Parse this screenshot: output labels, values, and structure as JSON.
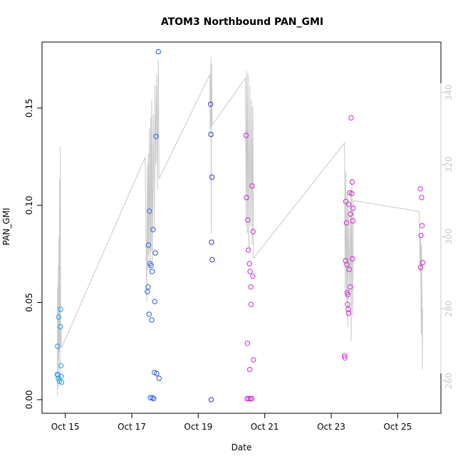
{
  "chart_data": {
    "type": "scatter",
    "title": "ATOM3 Northbound PAN_GMI",
    "xlabel": "Date",
    "ylabel": "PAN_GMI",
    "x_tick_labels": [
      "Oct 15",
      "Oct 17",
      "Oct 19",
      "Oct 21",
      "Oct 23",
      "Oct 25"
    ],
    "x_tick_values": [
      15,
      17,
      19,
      21,
      23,
      25
    ],
    "xlim": [
      14.3,
      26.3
    ],
    "ylim": [
      -0.007,
      0.184
    ],
    "y_ticks": [
      0.0,
      0.05,
      0.1,
      0.15
    ],
    "y_tick_labels": [
      "0.00",
      "0.05",
      "0.10",
      "0.15"
    ],
    "y2_ticks": [
      260,
      280,
      300,
      320,
      340
    ],
    "y2_tick_labels": [
      "260",
      "280",
      "300",
      "320",
      "340"
    ],
    "y2lim": [
      251,
      354
    ],
    "colors": {
      "series_blue": "#1e88e5",
      "series_gradient_start": "#1ea0e6",
      "series_gradient_mid": "#2f2fe0",
      "series_gradient_end": "#d02ad2",
      "secondary_line": "#c8c8c8"
    },
    "points": [
      {
        "x": 14.77,
        "y": 0.0275
      },
      {
        "x": 14.78,
        "y": 0.0125
      },
      {
        "x": 14.79,
        "y": 0.011
      },
      {
        "x": 14.8,
        "y": 0.0425
      },
      {
        "x": 14.82,
        "y": 0.0095
      },
      {
        "x": 14.85,
        "y": 0.0375
      },
      {
        "x": 14.86,
        "y": 0.0465
      },
      {
        "x": 14.87,
        "y": 0.0175
      },
      {
        "x": 14.88,
        "y": 0.012
      },
      {
        "x": 14.89,
        "y": 0.009
      },
      {
        "x": 14.76,
        "y": 0.013
      },
      {
        "x": 17.47,
        "y": 0.0555
      },
      {
        "x": 17.49,
        "y": 0.058
      },
      {
        "x": 17.5,
        "y": 0.0795
      },
      {
        "x": 17.52,
        "y": 0.044
      },
      {
        "x": 17.53,
        "y": 0.097
      },
      {
        "x": 17.55,
        "y": 0.07
      },
      {
        "x": 17.56,
        "y": 0.001
      },
      {
        "x": 17.58,
        "y": 0.069
      },
      {
        "x": 17.6,
        "y": 0.041
      },
      {
        "x": 17.61,
        "y": 0.066
      },
      {
        "x": 17.62,
        "y": 0.001
      },
      {
        "x": 17.64,
        "y": 0.0875
      },
      {
        "x": 17.66,
        "y": 0.0005
      },
      {
        "x": 17.68,
        "y": 0.014
      },
      {
        "x": 17.69,
        "y": 0.0505
      },
      {
        "x": 17.71,
        "y": 0.0755
      },
      {
        "x": 17.73,
        "y": 0.1355
      },
      {
        "x": 17.75,
        "y": 0.0135
      },
      {
        "x": 17.8,
        "y": 0.179
      },
      {
        "x": 17.82,
        "y": 0.011
      },
      {
        "x": 19.37,
        "y": 0.152
      },
      {
        "x": 19.38,
        "y": 0.1365
      },
      {
        "x": 19.39,
        "y": 0.0
      },
      {
        "x": 19.4,
        "y": 0.081
      },
      {
        "x": 19.41,
        "y": 0.1145
      },
      {
        "x": 19.42,
        "y": 0.072
      },
      {
        "x": 20.44,
        "y": 0.136
      },
      {
        "x": 20.45,
        "y": 0.104
      },
      {
        "x": 20.47,
        "y": 0.0005
      },
      {
        "x": 20.48,
        "y": 0.029
      },
      {
        "x": 20.49,
        "y": 0.0925
      },
      {
        "x": 20.51,
        "y": 0.077
      },
      {
        "x": 20.52,
        "y": 0.0005
      },
      {
        "x": 20.54,
        "y": 0.07
      },
      {
        "x": 20.55,
        "y": 0.0155
      },
      {
        "x": 20.56,
        "y": 0.066
      },
      {
        "x": 20.57,
        "y": 0.0005
      },
      {
        "x": 20.58,
        "y": 0.058
      },
      {
        "x": 20.59,
        "y": 0.049
      },
      {
        "x": 20.61,
        "y": 0.0005
      },
      {
        "x": 20.62,
        "y": 0.11
      },
      {
        "x": 20.64,
        "y": 0.0635
      },
      {
        "x": 20.65,
        "y": 0.0865
      },
      {
        "x": 20.66,
        "y": 0.0205
      },
      {
        "x": 23.4,
        "y": 0.0225
      },
      {
        "x": 23.41,
        "y": 0.0215
      },
      {
        "x": 23.43,
        "y": 0.0715
      },
      {
        "x": 23.44,
        "y": 0.102
      },
      {
        "x": 23.46,
        "y": 0.091
      },
      {
        "x": 23.47,
        "y": 0.0695
      },
      {
        "x": 23.48,
        "y": 0.055
      },
      {
        "x": 23.49,
        "y": 0.049
      },
      {
        "x": 23.5,
        "y": 0.054
      },
      {
        "x": 23.51,
        "y": 0.0465
      },
      {
        "x": 23.52,
        "y": 0.0445
      },
      {
        "x": 23.53,
        "y": 0.1005
      },
      {
        "x": 23.54,
        "y": 0.067
      },
      {
        "x": 23.56,
        "y": 0.1065
      },
      {
        "x": 23.57,
        "y": 0.058
      },
      {
        "x": 23.58,
        "y": 0.0955
      },
      {
        "x": 23.6,
        "y": 0.145
      },
      {
        "x": 23.62,
        "y": 0.106
      },
      {
        "x": 23.63,
        "y": 0.112
      },
      {
        "x": 23.64,
        "y": 0.0725
      },
      {
        "x": 23.65,
        "y": 0.092
      },
      {
        "x": 23.66,
        "y": 0.0985
      },
      {
        "x": 25.68,
        "y": 0.1085
      },
      {
        "x": 25.69,
        "y": 0.068
      },
      {
        "x": 25.7,
        "y": 0.0845
      },
      {
        "x": 25.72,
        "y": 0.104
      },
      {
        "x": 25.73,
        "y": 0.0895
      },
      {
        "x": 25.75,
        "y": 0.0705
      }
    ],
    "secondary_series_y2": [
      {
        "x": 14.76,
        "y2": 256
      },
      {
        "x": 14.77,
        "y2": 286
      },
      {
        "x": 14.78,
        "y2": 266
      },
      {
        "x": 14.79,
        "y2": 292
      },
      {
        "x": 14.8,
        "y2": 258
      },
      {
        "x": 14.81,
        "y2": 300
      },
      {
        "x": 14.82,
        "y2": 268
      },
      {
        "x": 14.83,
        "y2": 316
      },
      {
        "x": 14.84,
        "y2": 262
      },
      {
        "x": 14.85,
        "y2": 325
      },
      {
        "x": 14.86,
        "y2": 270
      },
      {
        "x": 14.87,
        "y2": 275
      },
      {
        "x": 14.88,
        "y2": 269
      },
      {
        "x": 17.4,
        "y2": 322
      },
      {
        "x": 17.45,
        "y2": 282
      },
      {
        "x": 17.47,
        "y2": 320
      },
      {
        "x": 17.49,
        "y2": 291
      },
      {
        "x": 17.5,
        "y2": 323
      },
      {
        "x": 17.51,
        "y2": 295
      },
      {
        "x": 17.53,
        "y2": 330
      },
      {
        "x": 17.55,
        "y2": 289
      },
      {
        "x": 17.57,
        "y2": 333
      },
      {
        "x": 17.58,
        "y2": 296
      },
      {
        "x": 17.6,
        "y2": 338
      },
      {
        "x": 17.62,
        "y2": 293
      },
      {
        "x": 17.65,
        "y2": 334
      },
      {
        "x": 17.68,
        "y2": 302
      },
      {
        "x": 17.7,
        "y2": 342
      },
      {
        "x": 17.72,
        "y2": 320
      },
      {
        "x": 17.75,
        "y2": 345
      },
      {
        "x": 17.77,
        "y2": 313
      },
      {
        "x": 17.8,
        "y2": 349
      },
      {
        "x": 17.82,
        "y2": 316
      },
      {
        "x": 19.35,
        "y2": 345
      },
      {
        "x": 19.36,
        "y2": 330
      },
      {
        "x": 19.38,
        "y2": 350
      },
      {
        "x": 19.39,
        "y2": 301
      },
      {
        "x": 19.4,
        "y2": 348
      },
      {
        "x": 19.42,
        "y2": 331
      },
      {
        "x": 20.42,
        "y2": 344
      },
      {
        "x": 20.44,
        "y2": 303
      },
      {
        "x": 20.46,
        "y2": 346
      },
      {
        "x": 20.48,
        "y2": 301
      },
      {
        "x": 20.5,
        "y2": 345
      },
      {
        "x": 20.52,
        "y2": 296
      },
      {
        "x": 20.55,
        "y2": 342
      },
      {
        "x": 20.57,
        "y2": 303
      },
      {
        "x": 20.6,
        "y2": 338
      },
      {
        "x": 20.62,
        "y2": 298
      },
      {
        "x": 20.64,
        "y2": 336
      },
      {
        "x": 20.66,
        "y2": 294
      },
      {
        "x": 23.4,
        "y2": 326
      },
      {
        "x": 23.42,
        "y2": 285
      },
      {
        "x": 23.44,
        "y2": 318
      },
      {
        "x": 23.46,
        "y2": 282
      },
      {
        "x": 23.48,
        "y2": 312
      },
      {
        "x": 23.5,
        "y2": 275
      },
      {
        "x": 23.52,
        "y2": 309
      },
      {
        "x": 23.55,
        "y2": 284
      },
      {
        "x": 23.58,
        "y2": 313
      },
      {
        "x": 23.6,
        "y2": 271
      },
      {
        "x": 23.62,
        "y2": 316
      },
      {
        "x": 23.65,
        "y2": 278
      },
      {
        "x": 23.67,
        "y2": 310
      },
      {
        "x": 25.65,
        "y2": 307
      },
      {
        "x": 25.67,
        "y2": 290
      },
      {
        "x": 25.69,
        "y2": 300
      },
      {
        "x": 25.71,
        "y2": 273
      },
      {
        "x": 25.72,
        "y2": 298
      },
      {
        "x": 25.74,
        "y2": 263
      },
      {
        "x": 25.75,
        "y2": 280
      }
    ]
  }
}
